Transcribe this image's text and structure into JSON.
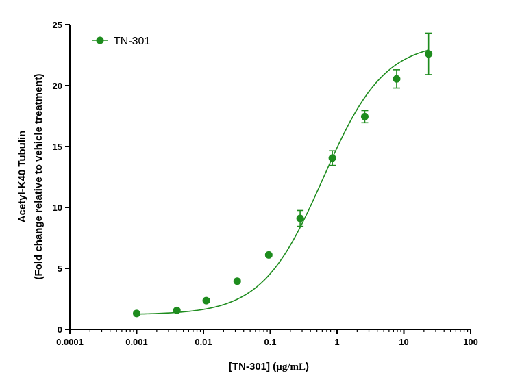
{
  "chart_data": {
    "type": "scatter",
    "xscale": "log",
    "xlim": [
      0.0001,
      100
    ],
    "ylim": [
      0,
      25
    ],
    "x_ticks": [
      0.0001,
      0.001,
      0.01,
      0.1,
      1,
      10,
      100
    ],
    "x_tick_labels": [
      "0.0001",
      "0.001",
      "0.01",
      "0.1",
      "1",
      "10",
      "100"
    ],
    "y_ticks": [
      0,
      5,
      10,
      15,
      20,
      25
    ],
    "y_tick_labels": [
      "0",
      "5",
      "10",
      "15",
      "20",
      "25"
    ],
    "xlabel_main": "[TN-301] (",
    "xlabel_unit": "µg/mL",
    "xlabel_end": ")",
    "ylabel_line1": "Acetyl-K40 Tubulin",
    "ylabel_line2": "(Fold change relative to vehicle treatment)",
    "grid": false,
    "legend_position": "top-left",
    "color": "#1e8c1e",
    "series": [
      {
        "name": "TN-301",
        "x": [
          0.001,
          0.004,
          0.011,
          0.032,
          0.095,
          0.28,
          0.85,
          2.6,
          7.8,
          23.5
        ],
        "y": [
          1.3,
          1.55,
          2.35,
          3.95,
          6.1,
          9.1,
          14.05,
          17.45,
          20.55,
          22.6
        ],
        "error": [
          0.1,
          0.1,
          0.15,
          0.1,
          0.1,
          0.65,
          0.6,
          0.5,
          0.75,
          1.7
        ]
      }
    ],
    "fit": {
      "bottom": 1.2,
      "top": 23.6,
      "ec50": 0.62,
      "hill": 0.95
    }
  }
}
